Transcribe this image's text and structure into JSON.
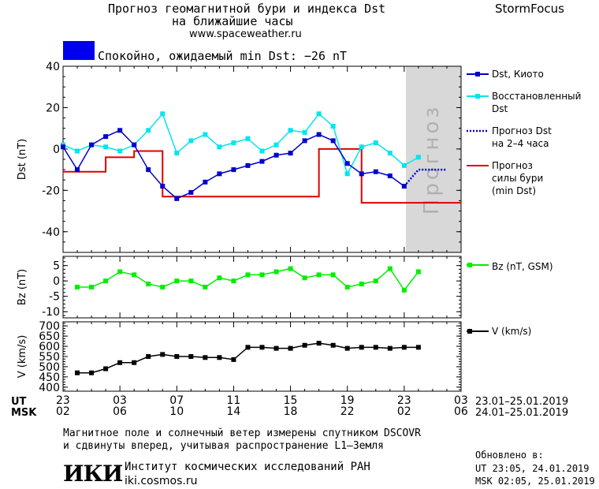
{
  "header": {
    "title_line1": "Прогноз геомагнитной бури и индекса Dst",
    "title_line2": "на ближайшие часы",
    "url": "www.spaceweather.ru",
    "brand": "StormFocus",
    "status": "Спокойно, ожидаемый min Dst: −26 nT",
    "status_color": "#0000ee"
  },
  "forecast_band_label": "Прогноз",
  "time_axis": {
    "ut_label": "UT",
    "msk_label": "MSK",
    "ut_ticks": [
      "23",
      "03",
      "07",
      "11",
      "15",
      "19",
      "23",
      "03"
    ],
    "msk_ticks": [
      "02",
      "06",
      "10",
      "14",
      "18",
      "22",
      "02",
      "06"
    ],
    "ut_range": "23.01–25.01.2019",
    "msk_range": "24.01–25.01.2019"
  },
  "legend": {
    "dst": "Dst, Киото",
    "dst_restored_1": "Восстановленный",
    "dst_restored_2": "Dst",
    "forecast_1": "Прогноз Dst",
    "forecast_2": "на 2–4 часа",
    "storm_1": "Прогноз",
    "storm_2": "силы бури",
    "storm_3": "(min Dst)",
    "bz": "Bz (nT, GSM)",
    "v": "V (km/s)"
  },
  "footer": {
    "line1": "Магнитное поле и солнечный ветер измерены спутником DSCOVR",
    "line2": "и сдвинуты вперед, учитывая распространение L1–Земля",
    "logo": "ИКИ",
    "institute": "Институт космических исследований РАН",
    "site": "iki.cosmos.ru",
    "updated_label": "Обновлено в:",
    "updated_ut": "UT  23:05, 24.01.2019",
    "updated_msk": "MSK 02:05, 25.01.2019"
  },
  "colors": {
    "dst": "#0000cc",
    "dst_restored": "#00e5ee",
    "forecast": "#0000cc",
    "storm": "#dd0000",
    "bz": "#00ee00",
    "v": "#000000",
    "band": "#d8d8d8"
  },
  "chart_data": [
    {
      "type": "line",
      "x_unit": "hours UT from 23 (23.01.2019)",
      "x_range": [
        0,
        28
      ],
      "ylabel": "Dst (nT)",
      "ylim": [
        -50,
        40
      ],
      "yticks": [
        40,
        20,
        0,
        -20,
        -40
      ],
      "forecast_band": [
        24,
        28
      ],
      "series": [
        {
          "name": "Dst, Киото",
          "x": [
            0,
            1,
            2,
            3,
            4,
            5,
            6,
            7,
            8,
            9,
            10,
            11,
            12,
            13,
            14,
            15,
            16,
            17,
            18,
            19,
            20,
            21,
            22,
            23,
            24
          ],
          "y": [
            1,
            -10,
            2,
            6,
            9,
            2,
            -10,
            -18,
            -24,
            -21,
            -16,
            -12,
            -10,
            -8,
            -6,
            -3,
            -2,
            4,
            7,
            4,
            -7,
            -12,
            -11,
            -13,
            -18
          ]
        },
        {
          "name": "Восстановленный Dst",
          "x": [
            0,
            1,
            2,
            3,
            4,
            5,
            6,
            7,
            8,
            9,
            10,
            11,
            12,
            13,
            14,
            15,
            16,
            17,
            18,
            19,
            20,
            21,
            22,
            23,
            24,
            25
          ],
          "y": [
            2,
            -1,
            2,
            1,
            -1,
            2,
            9,
            17,
            -2,
            4,
            7,
            1,
            3,
            5,
            -1,
            2,
            9,
            8,
            17,
            11,
            -12,
            1,
            3,
            -2,
            -8,
            -4
          ]
        },
        {
          "name": "Прогноз Dst на 2–4 часа",
          "x": [
            24,
            25,
            26,
            27
          ],
          "y": [
            -18,
            -10,
            -10,
            -10
          ]
        },
        {
          "name": "Прогноз силы бури (min Dst)",
          "x": [
            0,
            2,
            3,
            4,
            5,
            6,
            7,
            8,
            9,
            10,
            11,
            12,
            13,
            14,
            15,
            16,
            17,
            18,
            19,
            20,
            21,
            22,
            23,
            24,
            25,
            26,
            27,
            28
          ],
          "y": [
            -11,
            -11,
            -4,
            -4,
            -1,
            -1,
            -23,
            -23,
            -23,
            -23,
            -23,
            -23,
            -23,
            -23,
            -23,
            -23,
            -23,
            0,
            0,
            0,
            -26,
            -26,
            -26,
            -26,
            -26,
            -26,
            -26,
            -26
          ],
          "step": true
        }
      ]
    },
    {
      "type": "line",
      "ylabel": "Bz (nT)",
      "ylim": [
        -12,
        8
      ],
      "yticks": [
        5,
        0,
        -5,
        -10
      ],
      "series": [
        {
          "name": "Bz (nT, GSM)",
          "x": [
            1,
            2,
            3,
            4,
            5,
            6,
            7,
            8,
            9,
            10,
            11,
            12,
            13,
            14,
            15,
            16,
            17,
            18,
            19,
            20,
            21,
            22,
            23,
            24,
            25
          ],
          "y": [
            -2,
            -2,
            0,
            3,
            2,
            -1,
            -2,
            0,
            0,
            -2,
            1,
            0,
            2,
            2,
            3,
            4,
            1,
            2,
            2,
            -2,
            -1,
            0,
            4,
            -3,
            3
          ]
        }
      ]
    },
    {
      "type": "line",
      "ylabel": "V (km/s)",
      "ylim": [
        380,
        720
      ],
      "yticks": [
        700,
        650,
        600,
        550,
        500,
        450,
        400
      ],
      "series": [
        {
          "name": "V (km/s)",
          "x": [
            1,
            2,
            3,
            4,
            5,
            6,
            7,
            8,
            9,
            10,
            11,
            12,
            13,
            14,
            15,
            16,
            17,
            18,
            19,
            20,
            21,
            22,
            23,
            24,
            25
          ],
          "y": [
            470,
            470,
            490,
            520,
            520,
            550,
            560,
            550,
            550,
            545,
            545,
            535,
            595,
            595,
            590,
            590,
            605,
            615,
            605,
            590,
            595,
            595,
            590,
            595,
            595
          ]
        }
      ]
    }
  ]
}
